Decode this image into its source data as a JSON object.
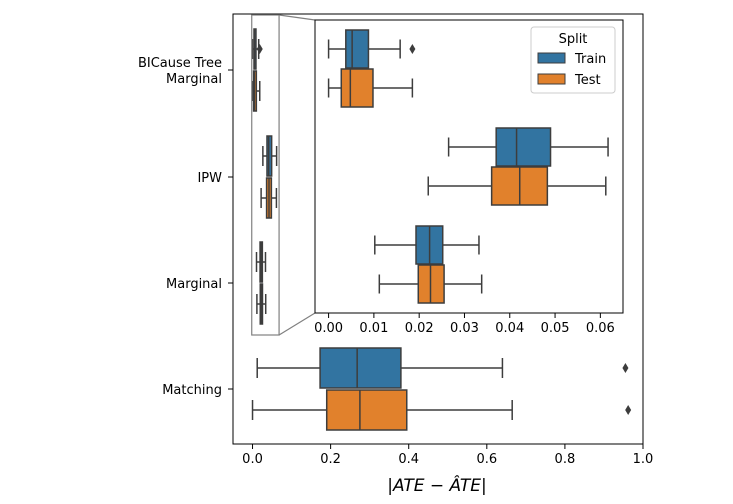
{
  "chart_data": {
    "type": "boxplot",
    "orientation": "horizontal",
    "xlabel": "|ATE − ÂTE|",
    "categories": [
      "BICause Tree Marginal",
      "IPW",
      "Marginal",
      "Matching"
    ],
    "category_labels": [
      [
        "BICause Tree",
        "Marginal"
      ],
      [
        "IPW"
      ],
      [
        "Marginal"
      ],
      [
        "Matching"
      ]
    ],
    "xlim": [
      -0.05,
      1.0
    ],
    "xticks": [
      0.0,
      0.2,
      0.4,
      0.6,
      0.8,
      1.0
    ],
    "xtick_labels": [
      "0.0",
      "0.2",
      "0.4",
      "0.6",
      "0.8",
      "1.0"
    ],
    "colors": {
      "Train": "#3274a1",
      "Test": "#e1812c",
      "line": "#3d3d3d",
      "inset_frame": "#808080"
    },
    "legend": {
      "title": "Split",
      "entries": [
        "Train",
        "Test"
      ],
      "placement": "inset-top-right"
    },
    "series": [
      {
        "name": "Train",
        "boxes": [
          {
            "category": "BICause Tree Marginal",
            "whislo": 0.0,
            "q1": 0.0038,
            "med": 0.0052,
            "q3": 0.0088,
            "whishi": 0.0158,
            "fliers": [
              0.0185
            ]
          },
          {
            "category": "IPW",
            "whislo": 0.0265,
            "q1": 0.037,
            "med": 0.0415,
            "q3": 0.049,
            "whishi": 0.0617,
            "fliers": []
          },
          {
            "category": "Marginal",
            "whislo": 0.0102,
            "q1": 0.0193,
            "med": 0.0223,
            "q3": 0.0252,
            "whishi": 0.0332,
            "fliers": []
          },
          {
            "category": "Matching",
            "whislo": 0.012,
            "q1": 0.173,
            "med": 0.268,
            "q3": 0.38,
            "whishi": 0.64,
            "fliers": [
              0.955
            ]
          }
        ]
      },
      {
        "name": "Test",
        "boxes": [
          {
            "category": "BICause Tree Marginal",
            "whislo": 0.0,
            "q1": 0.0028,
            "med": 0.0048,
            "q3": 0.0098,
            "whishi": 0.0185,
            "fliers": []
          },
          {
            "category": "IPW",
            "whislo": 0.022,
            "q1": 0.036,
            "med": 0.0422,
            "q3": 0.0483,
            "whishi": 0.0612,
            "fliers": []
          },
          {
            "category": "Marginal",
            "whislo": 0.0112,
            "q1": 0.0198,
            "med": 0.0225,
            "q3": 0.0255,
            "whishi": 0.0338,
            "fliers": []
          },
          {
            "category": "Matching",
            "whislo": 0.0,
            "q1": 0.19,
            "med": 0.275,
            "q3": 0.395,
            "whishi": 0.665,
            "fliers": [
              0.962
            ]
          }
        ]
      }
    ],
    "inset": {
      "categories": [
        "BICause Tree Marginal",
        "IPW",
        "Marginal"
      ],
      "xlim": [
        -0.003,
        0.065
      ],
      "xticks": [
        0.0,
        0.01,
        0.02,
        0.03,
        0.04,
        0.05,
        0.06
      ],
      "xtick_labels": [
        "0.00",
        "0.01",
        "0.02",
        "0.03",
        "0.04",
        "0.05",
        "0.06"
      ],
      "zoom_xrange": [
        -0.002,
        0.068
      ]
    }
  }
}
